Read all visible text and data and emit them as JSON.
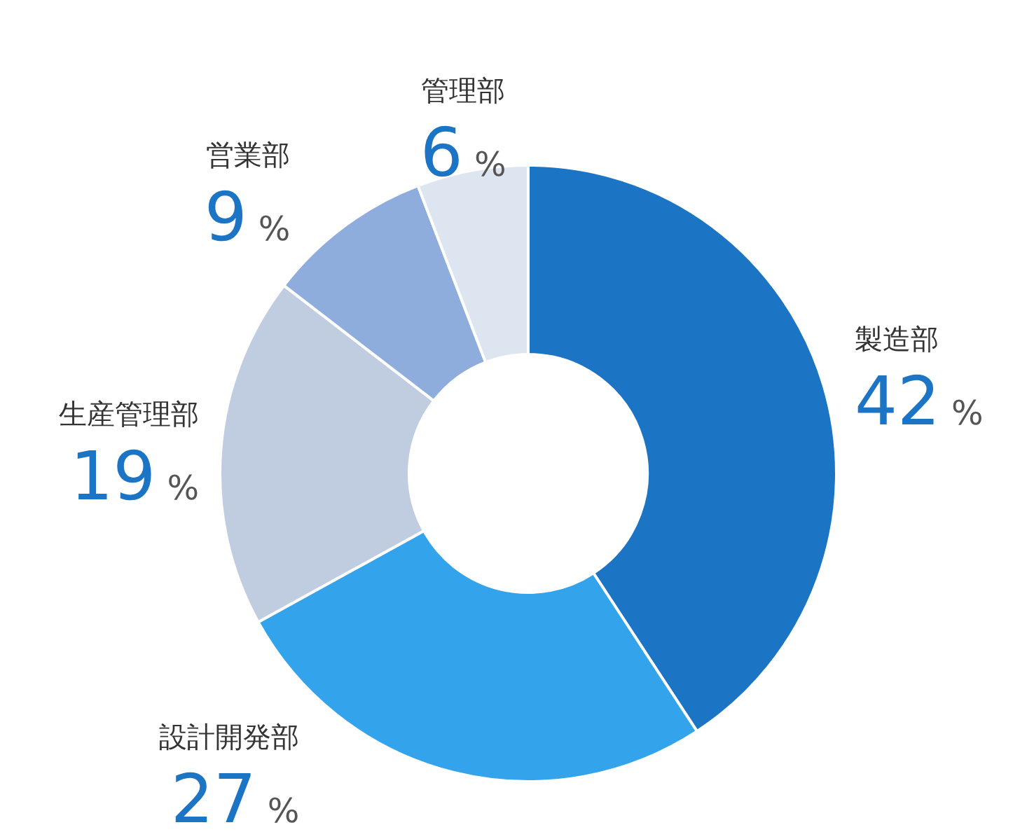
{
  "chart_data": {
    "type": "donut",
    "categories": [
      "製造部",
      "設計開発部",
      "生産管理部",
      "営業部",
      "管理部"
    ],
    "values": [
      42,
      27,
      19,
      9,
      6
    ],
    "colors": [
      "#1b75c4",
      "#33a4eb",
      "#c0cde0",
      "#8eacdc",
      "#dce5f0"
    ],
    "value_labels": [
      "42%",
      "27%",
      "19%",
      "9%",
      "6%"
    ]
  }
}
